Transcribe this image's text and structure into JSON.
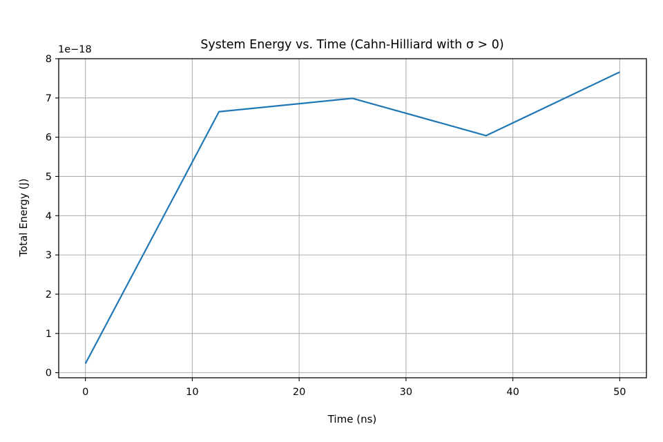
{
  "chart_data": {
    "type": "line",
    "title": "System Energy vs. Time (Cahn-Hilliard with σ > 0)",
    "xlabel": "Time (ns)",
    "ylabel": "Total Energy (J)",
    "y_offset_label": "1e−18",
    "xlim": [
      -2.5,
      52.5
    ],
    "ylim": [
      -0.13,
      8.0
    ],
    "x_ticks": [
      0,
      10,
      20,
      30,
      40,
      50
    ],
    "x_tick_labels": [
      "0",
      "10",
      "20",
      "30",
      "40",
      "50"
    ],
    "y_ticks": [
      0,
      1,
      2,
      3,
      4,
      5,
      6,
      7,
      8
    ],
    "y_tick_labels": [
      "0",
      "1",
      "2",
      "3",
      "4",
      "5",
      "6",
      "7",
      "8"
    ],
    "grid": true,
    "series": [
      {
        "x": [
          0,
          12.5,
          25,
          37.5,
          50
        ],
        "values": [
          0.23,
          6.65,
          6.99,
          6.04,
          7.66
        ],
        "color": "#1f77b4"
      }
    ]
  }
}
